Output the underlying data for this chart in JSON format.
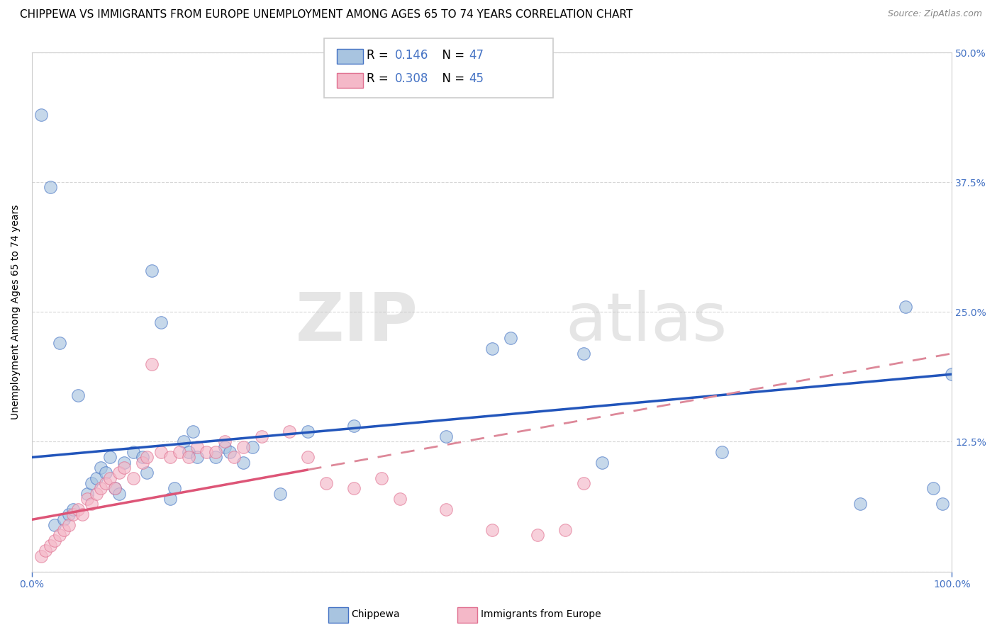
{
  "title": "CHIPPEWA VS IMMIGRANTS FROM EUROPE UNEMPLOYMENT AMONG AGES 65 TO 74 YEARS CORRELATION CHART",
  "source": "Source: ZipAtlas.com",
  "ylabel": "Unemployment Among Ages 65 to 74 years",
  "xlim": [
    0,
    100
  ],
  "ylim": [
    0,
    50
  ],
  "ytick_vals": [
    0,
    12.5,
    25,
    37.5,
    50
  ],
  "ytick_labels": [
    "",
    "12.5%",
    "25.0%",
    "37.5%",
    "50.0%"
  ],
  "xtick_vals": [
    0,
    100
  ],
  "xtick_labels": [
    "0.0%",
    "100.0%"
  ],
  "chippewa_color": "#a8c4e0",
  "chippewa_edge": "#4472C4",
  "immigrants_color": "#f4b8c8",
  "immigrants_edge": "#e07090",
  "blue_line_color": "#2255BB",
  "pink_line_color": "#DD5577",
  "pink_dash_color": "#DD8899",
  "chippewa_scatter": [
    [
      1.0,
      44.0
    ],
    [
      2.0,
      37.0
    ],
    [
      3.0,
      22.0
    ],
    [
      5.0,
      17.0
    ],
    [
      6.0,
      7.5
    ],
    [
      6.5,
      8.5
    ],
    [
      7.0,
      9.0
    ],
    [
      7.5,
      10.0
    ],
    [
      8.0,
      9.5
    ],
    [
      8.5,
      11.0
    ],
    [
      9.0,
      8.0
    ],
    [
      9.5,
      7.5
    ],
    [
      10.0,
      10.5
    ],
    [
      11.0,
      11.5
    ],
    [
      12.0,
      11.0
    ],
    [
      12.5,
      9.5
    ],
    [
      13.0,
      29.0
    ],
    [
      14.0,
      24.0
    ],
    [
      15.0,
      7.0
    ],
    [
      15.5,
      8.0
    ],
    [
      16.5,
      12.5
    ],
    [
      17.0,
      11.5
    ],
    [
      17.5,
      13.5
    ],
    [
      18.0,
      11.0
    ],
    [
      20.0,
      11.0
    ],
    [
      21.0,
      12.0
    ],
    [
      21.5,
      11.5
    ],
    [
      23.0,
      10.5
    ],
    [
      24.0,
      12.0
    ],
    [
      27.0,
      7.5
    ],
    [
      30.0,
      13.5
    ],
    [
      35.0,
      14.0
    ],
    [
      45.0,
      13.0
    ],
    [
      50.0,
      21.5
    ],
    [
      52.0,
      22.5
    ],
    [
      60.0,
      21.0
    ],
    [
      62.0,
      10.5
    ],
    [
      75.0,
      11.5
    ],
    [
      90.0,
      6.5
    ],
    [
      95.0,
      25.5
    ],
    [
      98.0,
      8.0
    ],
    [
      99.0,
      6.5
    ],
    [
      2.5,
      4.5
    ],
    [
      3.5,
      5.0
    ],
    [
      4.0,
      5.5
    ],
    [
      4.5,
      6.0
    ],
    [
      100.0,
      19.0
    ]
  ],
  "immigrants_scatter": [
    [
      1.0,
      1.5
    ],
    [
      1.5,
      2.0
    ],
    [
      2.0,
      2.5
    ],
    [
      2.5,
      3.0
    ],
    [
      3.0,
      3.5
    ],
    [
      3.5,
      4.0
    ],
    [
      4.0,
      4.5
    ],
    [
      4.5,
      5.5
    ],
    [
      5.0,
      6.0
    ],
    [
      5.5,
      5.5
    ],
    [
      6.0,
      7.0
    ],
    [
      6.5,
      6.5
    ],
    [
      7.0,
      7.5
    ],
    [
      7.5,
      8.0
    ],
    [
      8.0,
      8.5
    ],
    [
      8.5,
      9.0
    ],
    [
      9.0,
      8.0
    ],
    [
      9.5,
      9.5
    ],
    [
      10.0,
      10.0
    ],
    [
      11.0,
      9.0
    ],
    [
      12.0,
      10.5
    ],
    [
      12.5,
      11.0
    ],
    [
      13.0,
      20.0
    ],
    [
      14.0,
      11.5
    ],
    [
      15.0,
      11.0
    ],
    [
      16.0,
      11.5
    ],
    [
      17.0,
      11.0
    ],
    [
      18.0,
      12.0
    ],
    [
      19.0,
      11.5
    ],
    [
      20.0,
      11.5
    ],
    [
      21.0,
      12.5
    ],
    [
      22.0,
      11.0
    ],
    [
      23.0,
      12.0
    ],
    [
      25.0,
      13.0
    ],
    [
      28.0,
      13.5
    ],
    [
      30.0,
      11.0
    ],
    [
      32.0,
      8.5
    ],
    [
      35.0,
      8.0
    ],
    [
      38.0,
      9.0
    ],
    [
      40.0,
      7.0
    ],
    [
      45.0,
      6.0
    ],
    [
      50.0,
      4.0
    ],
    [
      55.0,
      3.5
    ],
    [
      58.0,
      4.0
    ],
    [
      60.0,
      8.5
    ]
  ],
  "chippewa_trend": [
    11.0,
    19.0
  ],
  "immigrants_trend_solid": [
    5.0,
    13.5
  ],
  "immigrants_trend_dash": [
    13.5,
    21.0
  ],
  "title_fontsize": 11,
  "label_fontsize": 10,
  "tick_fontsize": 10,
  "legend_fontsize": 12
}
